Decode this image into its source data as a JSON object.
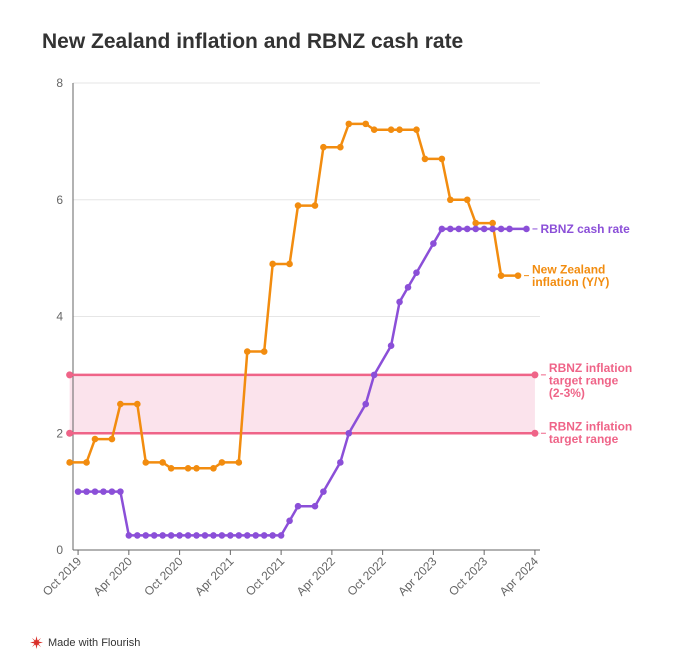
{
  "title": "New Zealand inflation and RBNZ cash rate",
  "footer": {
    "text": "Made with Flourish"
  },
  "colors": {
    "cash": "#8b4fd8",
    "inflation": "#f28c0f",
    "target": "#ef6488",
    "band": "#fbe3ec",
    "grid": "#e6e6e6",
    "axis": "#666666",
    "text": "#333333"
  },
  "chart_data": {
    "type": "line",
    "title": "New Zealand inflation and RBNZ cash rate",
    "xlabel": "",
    "ylabel": "",
    "ylim": [
      0,
      8
    ],
    "yticks": [
      0,
      2,
      4,
      6,
      8
    ],
    "xlim": [
      -0.6,
      54.6
    ],
    "xticks": [
      {
        "label": "Oct 2019",
        "x": 0
      },
      {
        "label": "Apr 2020",
        "x": 6
      },
      {
        "label": "Oct 2020",
        "x": 12
      },
      {
        "label": "Apr 2021",
        "x": 18
      },
      {
        "label": "Oct 2021",
        "x": 24
      },
      {
        "label": "Apr 2022",
        "x": 30
      },
      {
        "label": "Oct 2022",
        "x": 36
      },
      {
        "label": "Apr 2023",
        "x": 42
      },
      {
        "label": "Oct 2023",
        "x": 48
      },
      {
        "label": "Apr 2024",
        "x": 54
      }
    ],
    "series": [
      {
        "name": "New Zealand inflation (Y/Y)",
        "label_lines": [
          "New Zealand",
          "inflation (Y/Y)"
        ],
        "color": "#f28c0f",
        "style": "step",
        "points": [
          [
            -1,
            1.5
          ],
          [
            1,
            1.5
          ],
          [
            2,
            1.9
          ],
          [
            4,
            1.9
          ],
          [
            5,
            2.5
          ],
          [
            7,
            2.5
          ],
          [
            8,
            1.5
          ],
          [
            10,
            1.5
          ],
          [
            11,
            1.4
          ],
          [
            13,
            1.4
          ],
          [
            14,
            1.4
          ],
          [
            16,
            1.4
          ],
          [
            17,
            1.5
          ],
          [
            19,
            1.5
          ],
          [
            20,
            3.4
          ],
          [
            22,
            3.4
          ],
          [
            23,
            4.9
          ],
          [
            25,
            4.9
          ],
          [
            26,
            5.9
          ],
          [
            28,
            5.9
          ],
          [
            29,
            6.9
          ],
          [
            31,
            6.9
          ],
          [
            32,
            7.3
          ],
          [
            34,
            7.3
          ],
          [
            35,
            7.2
          ],
          [
            37,
            7.2
          ],
          [
            38,
            7.2
          ],
          [
            40,
            7.2
          ],
          [
            41,
            6.7
          ],
          [
            43,
            6.7
          ],
          [
            44,
            6.0
          ],
          [
            46,
            6.0
          ],
          [
            47,
            5.6
          ],
          [
            49,
            5.6
          ],
          [
            50,
            4.7
          ],
          [
            52,
            4.7
          ]
        ]
      },
      {
        "name": "RBNZ cash rate",
        "label_lines": [
          "RBNZ cash rate"
        ],
        "color": "#8b4fd8",
        "style": "line",
        "points": [
          [
            0,
            1.0
          ],
          [
            1,
            1.0
          ],
          [
            2,
            1.0
          ],
          [
            3,
            1.0
          ],
          [
            4,
            1.0
          ],
          [
            5,
            1.0
          ],
          [
            6,
            0.25
          ],
          [
            7,
            0.25
          ],
          [
            8,
            0.25
          ],
          [
            9,
            0.25
          ],
          [
            10,
            0.25
          ],
          [
            11,
            0.25
          ],
          [
            12,
            0.25
          ],
          [
            13,
            0.25
          ],
          [
            14,
            0.25
          ],
          [
            15,
            0.25
          ],
          [
            16,
            0.25
          ],
          [
            17,
            0.25
          ],
          [
            18,
            0.25
          ],
          [
            19,
            0.25
          ],
          [
            20,
            0.25
          ],
          [
            21,
            0.25
          ],
          [
            22,
            0.25
          ],
          [
            23,
            0.25
          ],
          [
            24,
            0.25
          ],
          [
            25,
            0.5
          ],
          [
            26,
            0.75
          ],
          [
            28,
            0.75
          ],
          [
            29,
            1.0
          ],
          [
            31,
            1.5
          ],
          [
            32,
            2.0
          ],
          [
            34,
            2.5
          ],
          [
            35,
            3.0
          ],
          [
            37,
            3.5
          ],
          [
            38,
            4.25
          ],
          [
            39,
            4.5
          ],
          [
            40,
            4.75
          ],
          [
            42,
            5.25
          ],
          [
            43,
            5.5
          ],
          [
            44,
            5.5
          ],
          [
            45,
            5.5
          ],
          [
            46,
            5.5
          ],
          [
            47,
            5.5
          ],
          [
            48,
            5.5
          ],
          [
            49,
            5.5
          ],
          [
            50,
            5.5
          ],
          [
            51,
            5.5
          ],
          [
            53,
            5.5
          ]
        ]
      }
    ],
    "target_range": {
      "low": 2,
      "high": 3,
      "x_start": -1,
      "x_end": 54,
      "label_high_lines": [
        "RBNZ inflation",
        "target range",
        "(2-3%)"
      ],
      "label_low_lines": [
        "RBNZ inflation",
        "target range"
      ]
    }
  }
}
